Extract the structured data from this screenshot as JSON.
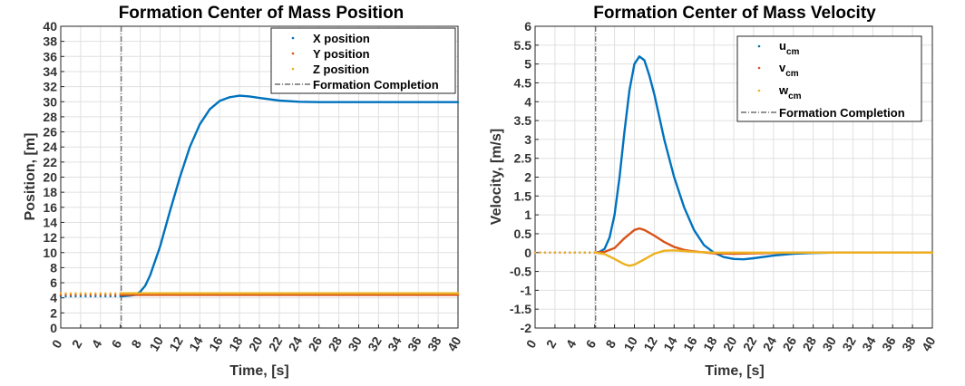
{
  "chart_data": [
    {
      "type": "line",
      "title": "Formation Center of Mass Position",
      "xlabel": "Time, [s]",
      "ylabel": "Position, [m]",
      "xlim": [
        0,
        40
      ],
      "ylim": [
        0,
        40
      ],
      "xticks": [
        0,
        2,
        4,
        6,
        8,
        10,
        12,
        14,
        16,
        18,
        20,
        22,
        24,
        26,
        28,
        30,
        32,
        34,
        36,
        38,
        40
      ],
      "yticks": [
        0,
        2,
        4,
        6,
        8,
        10,
        12,
        14,
        16,
        18,
        20,
        22,
        24,
        26,
        28,
        30,
        32,
        34,
        36,
        38,
        40
      ],
      "grid": true,
      "legend_location": "top-right",
      "formation_completion_time": 6.1,
      "series": [
        {
          "name": "X position",
          "color": "#0072BD",
          "x": [
            0,
            2,
            4,
            6,
            6.1,
            7,
            7.5,
            8,
            8.5,
            9,
            10,
            11,
            12,
            13,
            14,
            15,
            16,
            17,
            18,
            19,
            20,
            22,
            24,
            26,
            28,
            30,
            32,
            34,
            36,
            38,
            40
          ],
          "y": [
            4.2,
            4.2,
            4.2,
            4.2,
            4.2,
            4.3,
            4.4,
            4.8,
            5.6,
            7.0,
            10.8,
            15.5,
            20.0,
            24.0,
            27.0,
            29.0,
            30.1,
            30.6,
            30.8,
            30.7,
            30.5,
            30.15,
            30.0,
            29.95,
            29.95,
            29.95,
            29.95,
            29.95,
            29.95,
            29.95,
            29.95
          ]
        },
        {
          "name": "Y position",
          "color": "#D95319",
          "x": [
            0,
            2,
            4,
            6,
            6.1,
            10,
            20,
            30,
            40
          ],
          "y": [
            4.4,
            4.4,
            4.4,
            4.4,
            4.4,
            4.4,
            4.4,
            4.4,
            4.4
          ]
        },
        {
          "name": "Z position",
          "color": "#EDB120",
          "x": [
            0,
            2,
            4,
            6,
            6.1,
            10,
            20,
            30,
            40
          ],
          "y": [
            4.6,
            4.6,
            4.6,
            4.6,
            4.6,
            4.6,
            4.6,
            4.6,
            4.6
          ]
        }
      ],
      "legend": [
        {
          "label": "X position"
        },
        {
          "label": "Y position"
        },
        {
          "label": "Z position"
        },
        {
          "label": "Formation Completion"
        }
      ]
    },
    {
      "type": "line",
      "title": "Formation Center of Mass Velocity",
      "xlabel": "Time, [s]",
      "ylabel": "Velocity, [m/s]",
      "xlim": [
        0,
        40
      ],
      "ylim": [
        -2,
        6
      ],
      "xticks": [
        0,
        2,
        4,
        6,
        8,
        10,
        12,
        14,
        16,
        18,
        20,
        22,
        24,
        26,
        28,
        30,
        32,
        34,
        36,
        38,
        40
      ],
      "yticks": [
        -2,
        -1.5,
        -1,
        -0.5,
        0,
        0.5,
        1,
        1.5,
        2,
        2.5,
        3,
        3.5,
        4,
        4.5,
        5,
        5.5,
        6
      ],
      "grid": true,
      "legend_location": "top-right",
      "formation_completion_time": 6.1,
      "series": [
        {
          "name": "u_cm",
          "color": "#0072BD",
          "x": [
            0,
            2,
            4,
            6,
            6.1,
            6.5,
            7,
            7.5,
            8,
            8.5,
            9,
            9.5,
            10,
            10.5,
            11,
            11.5,
            12,
            12.5,
            13,
            14,
            15,
            16,
            17,
            18,
            19,
            20,
            21,
            22,
            24,
            26,
            28,
            30,
            32,
            36,
            40
          ],
          "y": [
            0,
            0,
            0,
            0,
            0,
            0.02,
            0.1,
            0.4,
            1.0,
            2.0,
            3.2,
            4.3,
            5.0,
            5.2,
            5.1,
            4.7,
            4.2,
            3.6,
            3.0,
            2.0,
            1.2,
            0.6,
            0.2,
            0.0,
            -0.12,
            -0.17,
            -0.18,
            -0.15,
            -0.08,
            -0.03,
            -0.01,
            0,
            0,
            0,
            0
          ]
        },
        {
          "name": "v_cm",
          "color": "#D95319",
          "x": [
            0,
            2,
            4,
            6,
            6.1,
            7,
            8,
            9,
            10,
            10.5,
            11,
            12,
            13,
            14,
            15,
            16,
            18,
            20,
            22,
            24,
            26,
            28,
            30,
            35,
            40
          ],
          "y": [
            0,
            0,
            0,
            0,
            0,
            0.02,
            0.12,
            0.38,
            0.6,
            0.64,
            0.6,
            0.45,
            0.28,
            0.15,
            0.07,
            0.03,
            -0.02,
            -0.03,
            -0.02,
            -0.01,
            0,
            0,
            0,
            0,
            0
          ]
        },
        {
          "name": "w_cm",
          "color": "#EDB120",
          "x": [
            0,
            2,
            4,
            6,
            6.1,
            7,
            8,
            9,
            9.5,
            10,
            11,
            12,
            13,
            14,
            15,
            16,
            18,
            20,
            25,
            30,
            40
          ],
          "y": [
            0,
            0,
            0,
            0,
            0,
            -0.04,
            -0.17,
            -0.31,
            -0.35,
            -0.32,
            -0.18,
            -0.03,
            0.05,
            0.06,
            0.04,
            0.02,
            0.0,
            0,
            0,
            0,
            0
          ]
        }
      ],
      "legend": [
        {
          "label": "u",
          "sub": "cm"
        },
        {
          "label": "v",
          "sub": "cm"
        },
        {
          "label": "w",
          "sub": "cm"
        },
        {
          "label": "Formation Completion"
        }
      ]
    }
  ]
}
